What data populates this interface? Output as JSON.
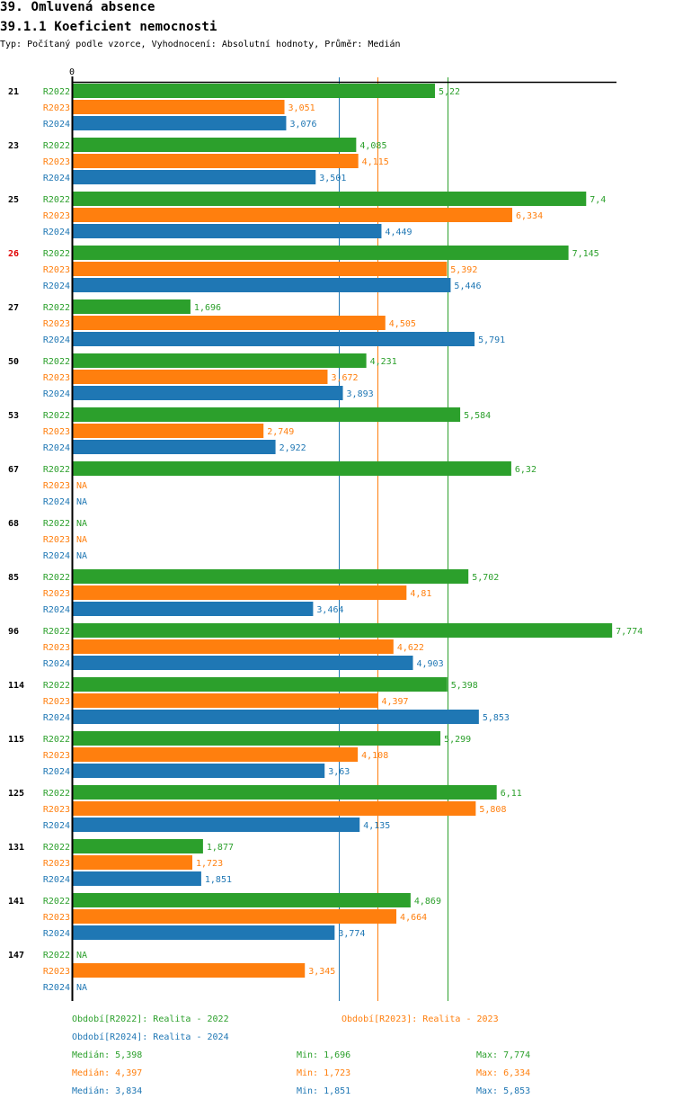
{
  "header": {
    "title": "39. Omluvená absence",
    "subtitle": "39.1.1 Koeficient nemocnosti",
    "description": "Typ: Počítaný podle vzorce, Vyhodnocení: Absolutní hodnoty, Průměr: Medián"
  },
  "colors": {
    "R2022": "#2ca02c",
    "R2023": "#ff7f0e",
    "R2024": "#1f77b4",
    "highlight": "#e00000",
    "axis": "#000000"
  },
  "chart_data": {
    "type": "bar",
    "orientation": "horizontal",
    "title": "39.1.1 Koeficient nemocnosti",
    "xlabel": "",
    "ylabel": "",
    "x_tick_labels": [
      "0"
    ],
    "xlim": [
      0,
      7.774
    ],
    "grid": false,
    "highlighted_category": "26",
    "categories": [
      "21",
      "23",
      "25",
      "26",
      "27",
      "50",
      "53",
      "67",
      "68",
      "85",
      "96",
      "114",
      "115",
      "125",
      "131",
      "141",
      "147"
    ],
    "series": [
      {
        "name": "R2022",
        "values": [
          5.22,
          4.085,
          7.4,
          7.145,
          1.696,
          4.231,
          5.584,
          6.32,
          null,
          5.702,
          7.774,
          5.398,
          5.299,
          6.11,
          1.877,
          4.869,
          null
        ],
        "labels": [
          "5,22",
          "4,085",
          "7,4",
          "7,145",
          "1,696",
          "4,231",
          "5,584",
          "6,32",
          "NA",
          "5,702",
          "7,774",
          "5,398",
          "5,299",
          "6,11",
          "1,877",
          "4,869",
          "NA"
        ]
      },
      {
        "name": "R2023",
        "values": [
          3.051,
          4.115,
          6.334,
          5.392,
          4.505,
          3.672,
          2.749,
          null,
          null,
          4.81,
          4.622,
          4.397,
          4.108,
          5.808,
          1.723,
          4.664,
          3.345
        ],
        "labels": [
          "3,051",
          "4,115",
          "6,334",
          "5,392",
          "4,505",
          "3,672",
          "2,749",
          "NA",
          "NA",
          "4,81",
          "4,622",
          "4,397",
          "4,108",
          "5,808",
          "1,723",
          "4,664",
          "3,345"
        ]
      },
      {
        "name": "R2024",
        "values": [
          3.076,
          3.501,
          4.449,
          5.446,
          5.791,
          3.893,
          2.922,
          null,
          null,
          3.464,
          4.903,
          5.853,
          3.63,
          4.135,
          1.851,
          3.774,
          null
        ],
        "labels": [
          "3,076",
          "3,501",
          "4,449",
          "5,446",
          "5,791",
          "3,893",
          "2,922",
          "NA",
          "NA",
          "3,464",
          "4,903",
          "5,853",
          "3,63",
          "4,135",
          "1,851",
          "3,774",
          "NA"
        ]
      }
    ],
    "median_lines": [
      {
        "series": "R2022",
        "value": 5.398
      },
      {
        "series": "R2023",
        "value": 4.397
      },
      {
        "series": "R2024",
        "value": 3.834
      }
    ],
    "legend": [
      {
        "series": "R2022",
        "text": "Období[R2022]: Realita - 2022"
      },
      {
        "series": "R2023",
        "text": "Období[R2023]: Realita - 2023"
      },
      {
        "series": "R2024",
        "text": "Období[R2024]: Realita - 2024"
      }
    ],
    "stats": [
      {
        "series": "R2022",
        "median": "Medián: 5,398",
        "min": "Min: 1,696",
        "max": "Max: 7,774"
      },
      {
        "series": "R2023",
        "median": "Medián: 4,397",
        "min": "Min: 1,723",
        "max": "Max: 6,334"
      },
      {
        "series": "R2024",
        "median": "Medián: 3,834",
        "min": "Min: 1,851",
        "max": "Max: 5,853"
      }
    ]
  }
}
